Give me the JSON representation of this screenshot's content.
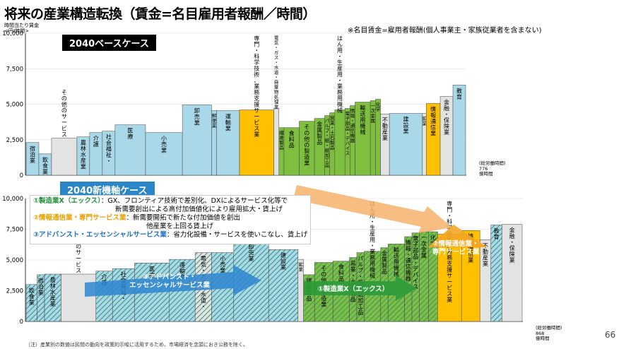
{
  "title": "将来の産業構造転換（賃金=名目雇用者報酬／時間）",
  "note": "※名目賃金=雇用者報酬(個人事業主・家族従業者を含まない)",
  "unit_label": "時間当たり賃金\n<円/時間>",
  "case1_label": "2040ベースケース",
  "case2_label": "2040新機軸ケース",
  "highlights": [
    {
      "name": "①製造業X（エックス）",
      "text": "：GX、フロンティア技術で差別化、DXによるサービス化等で",
      "text2": "新需要創出による高付加価値化により雇用拡大・賃上げ"
    },
    {
      "name": "②情報通信業・専門サービス業",
      "text": "：新需要開拓で新たな付加価値を創出",
      "text2": "他産業を上回る賃上げ"
    },
    {
      "name": "③アドバンスト・エッセンシャルサービス業",
      "text": "：省力化設備・サービスを使いこなし、賃上げ",
      "text2": ""
    }
  ],
  "labor_note1": "(総労働時間)\n776\n億時間",
  "labor_note2": "(総労働時間)\n868\n億時間",
  "page_number": "66",
  "footnote": "（注）産業別の数値は民間の動向を政策的示唆に活用するため、市場経済を念頭におき公務を除く。",
  "callouts": {
    "advanced": "③アドバンスト・\nエッセンシャルサービス業",
    "manufacturing": "①製造業X（エックス）",
    "info": "②情報通信業・\n専門サービス業"
  },
  "chart_data": [
    {
      "type": "bar",
      "title": "2040ベースケース",
      "ylim": [
        0,
        10000
      ],
      "yticks": [
        "0",
        "2,500",
        "5,000",
        "7,500",
        "10,000"
      ],
      "bars": [
        {
          "label": "宿泊業",
          "w": 1,
          "v": 2300,
          "c": "#a9d8e8"
        },
        {
          "label": "飲食業",
          "w": 1,
          "v": 1500,
          "c": "#a9d8e8"
        },
        {
          "label": "その他のサービス",
          "w": 2,
          "v": 2600,
          "c": "#e3e3e3"
        },
        {
          "label": "農林水産業",
          "w": 1,
          "v": 2700,
          "c": "#a9d8e8"
        },
        {
          "label": "介護",
          "w": 1,
          "v": 3000,
          "c": "#a9d8e8"
        },
        {
          "label": "社会福祉・",
          "w": 1,
          "v": 3100,
          "c": "#a9d8e8"
        },
        {
          "label": "医療",
          "w": 2.4,
          "v": 3550,
          "c": "#a9d8e8"
        },
        {
          "label": "小売業",
          "w": 2.9,
          "v": 3000,
          "c": "#a9d8e8"
        },
        {
          "label": "卸売業",
          "w": 2.3,
          "v": 4950,
          "c": "#a9d8e8"
        },
        {
          "label": "郵便業",
          "w": 0.4,
          "v": 4550,
          "c": "#a9d8e8"
        },
        {
          "label": "運輸業",
          "w": 1.8,
          "v": 4550,
          "c": "#a9d8e8"
        },
        {
          "label": "専門・科学技術、業務支援サービス業",
          "w": 2.7,
          "v": 4600,
          "c": "#ffc000"
        },
        {
          "label": "電気・ガス・水道・廃棄物処理業",
          "w": 0.4,
          "v": 4700,
          "c": "#e3e3e3"
        },
        {
          "label": "繊維製品",
          "w": 0.4,
          "v": 3350,
          "c": "#7fbf3f"
        },
        {
          "label": "食料品",
          "w": 1.2,
          "v": 3350,
          "c": "#7fbf3f"
        },
        {
          "label": "その他の製造業",
          "w": 1.2,
          "v": 3800,
          "c": "#7fbf3f"
        },
        {
          "label": "金属製品",
          "w": 0.8,
          "v": 4000,
          "c": "#7fbf3f"
        },
        {
          "label": "パルプ・紙・紙加工品",
          "w": 0.4,
          "v": 4200,
          "c": "#7fbf3f"
        },
        {
          "label": "窯業・土石製品",
          "w": 0.4,
          "v": 4400,
          "c": "#7fbf3f"
        },
        {
          "label": "はん用・生産用・業務用機械",
          "w": 0.8,
          "v": 4600,
          "c": "#7fbf3f"
        },
        {
          "label": "電子部品・デバイス",
          "w": 0.4,
          "v": 4700,
          "c": "#7fbf3f"
        },
        {
          "label": "情報・通信機器",
          "w": 0.4,
          "v": 4900,
          "c": "#7fbf3f"
        },
        {
          "label": "輸送用機械",
          "w": 1.2,
          "v": 5150,
          "c": "#7fbf3f"
        },
        {
          "label": "一次金属",
          "w": 0.4,
          "v": 5250,
          "c": "#7fbf3f"
        },
        {
          "label": "化学",
          "w": 0.4,
          "v": 5350,
          "c": "#7fbf3f"
        },
        {
          "label": "不動産業",
          "w": 0.7,
          "v": 4300,
          "c": "#e3e3e3"
        },
        {
          "label": "建設業",
          "w": 2.6,
          "v": 4350,
          "c": "#a9d8e8"
        },
        {
          "label": "鉱業",
          "w": 0.3,
          "v": 4350,
          "c": "#e3e3e3"
        },
        {
          "label": "情報通信業",
          "w": 1.1,
          "v": 5050,
          "c": "#ffc000"
        },
        {
          "label": "金融・保険業",
          "w": 1.0,
          "v": 5550,
          "c": "#e3e3e3"
        },
        {
          "label": "教育",
          "w": 1.0,
          "v": 6350,
          "c": "#a9d8e8"
        }
      ]
    },
    {
      "type": "bar",
      "title": "2040新機軸ケース",
      "ylim": [
        0,
        10000
      ],
      "yticks": [
        "0",
        "2,500",
        "5,000",
        "7,500",
        "10,000"
      ],
      "bars": [
        {
          "label": "飲食業",
          "w": 0.6,
          "v": 3000,
          "c": "#a9d8e8",
          "h": 1
        },
        {
          "label": "宿泊業",
          "w": 0.4,
          "v": 3800,
          "c": "#a9d8e8",
          "h": 1
        },
        {
          "label": "農林水産業",
          "w": 0.9,
          "v": 3850,
          "c": "#a9d8e8",
          "h": 1
        },
        {
          "label": "その他のサービス",
          "w": 1.9,
          "v": 3850,
          "c": "#e3e3e3"
        },
        {
          "label": "介護",
          "w": 0.9,
          "v": 4100,
          "c": "#a9d8e8",
          "h": 1
        },
        {
          "label": "社会福祉・",
          "w": 1.2,
          "v": 4300,
          "c": "#a9d8e8",
          "h": 1
        },
        {
          "label": "医療",
          "w": 1.9,
          "v": 4750,
          "c": "#a9d8e8",
          "h": 1
        },
        {
          "label": "運輸業",
          "w": 1.4,
          "v": 5050,
          "c": "#a9d8e8",
          "h": 1
        },
        {
          "label": "電気・ガス・水道・",
          "w": 0.9,
          "v": 5600,
          "c": "#e3e3e3",
          "h": 1
        },
        {
          "label": "小売業",
          "w": 1.2,
          "v": 5600,
          "c": "#a9d8e8",
          "h": 1
        },
        {
          "label": "卸売業",
          "w": 1.9,
          "v": 6550,
          "c": "#a9d8e8",
          "h": 1
        },
        {
          "label": "建設業",
          "w": 1.6,
          "v": 5850,
          "c": "#a9d8e8",
          "h": 1
        },
        {
          "label": "鉱業",
          "w": 0.3,
          "v": 5050,
          "c": "#e3e3e3"
        },
        {
          "label": "繊維製品",
          "w": 0.6,
          "v": 3800,
          "c": "#7fbf3f",
          "h": 1
        },
        {
          "label": "その他の製造業",
          "w": 1.0,
          "v": 4800,
          "c": "#7fbf3f",
          "h": 1
        },
        {
          "label": "食料品",
          "w": 0.9,
          "v": 4900,
          "c": "#7fbf3f",
          "h": 1
        },
        {
          "label": "窯業・土石製品",
          "w": 0.4,
          "v": 5200,
          "c": "#7fbf3f",
          "h": 1
        },
        {
          "label": "パルプ・紙・紙加工品",
          "w": 0.4,
          "v": 5600,
          "c": "#7fbf3f",
          "h": 1
        },
        {
          "label": "はん用・生産用・業務用機械",
          "w": 0.9,
          "v": 5700,
          "c": "#7fbf3f",
          "h": 1
        },
        {
          "label": "金属製品",
          "w": 0.4,
          "v": 6000,
          "c": "#7fbf3f",
          "h": 1
        },
        {
          "label": "輸送用機械",
          "w": 0.9,
          "v": 6300,
          "c": "#7fbf3f",
          "h": 1
        },
        {
          "label": "情報・通信機器",
          "w": 0.4,
          "v": 6900,
          "c": "#7fbf3f",
          "h": 1
        },
        {
          "label": "電子部品・デバイス",
          "w": 0.4,
          "v": 7200,
          "c": "#7fbf3f",
          "h": 1
        },
        {
          "label": "一次金属",
          "w": 0.5,
          "v": 7300,
          "c": "#7fbf3f",
          "h": 1
        },
        {
          "label": "化学",
          "w": 0.5,
          "v": 7300,
          "c": "#7fbf3f",
          "h": 1
        },
        {
          "label": "専門・科学技術、業務支援サービス業",
          "w": 1.3,
          "v": 7100,
          "c": "#ffc000"
        },
        {
          "label": "情報通信業",
          "w": 1.0,
          "v": 7400,
          "c": "#ffc000"
        },
        {
          "label": "不動産業",
          "w": 0.6,
          "v": 6650,
          "c": "#e3e3e3"
        },
        {
          "label": "教育",
          "w": 0.6,
          "v": 7850,
          "c": "#a9d8e8",
          "h": 1
        },
        {
          "label": "金融・保険業",
          "w": 1.1,
          "v": 7900,
          "c": "#e3e3e3"
        }
      ]
    }
  ]
}
